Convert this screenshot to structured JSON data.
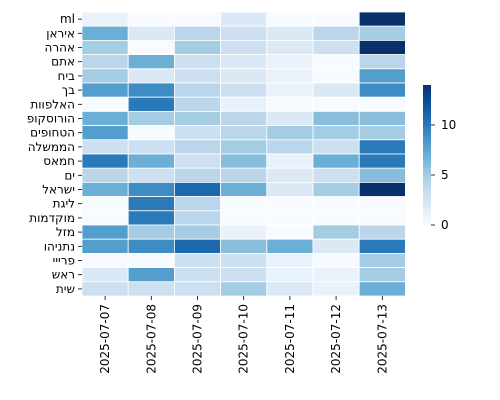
{
  "chart_data": {
    "type": "heatmap",
    "title": "",
    "xlabel": "",
    "ylabel": "",
    "colormap": "Blues",
    "colors": {
      "low": "#f7fbff",
      "high": "#08306b"
    },
    "vmin": 0,
    "vmax": 14,
    "colorbar_ticks": [
      "0",
      "5",
      "10"
    ],
    "colorbar_tick_values": [
      0,
      5,
      10
    ],
    "x_categories": [
      "2025-07-07",
      "2025-07-08",
      "2025-07-09",
      "2025-07-10",
      "2025-07-11",
      "2025-07-12",
      "2025-07-13"
    ],
    "y_categories": [
      "ml",
      "איראן",
      "אהרה",
      "אתם",
      "ביח",
      "בך",
      "האלפוות",
      "הורוסקופ",
      "הטחופים",
      "הממשלה",
      "חמאס",
      "ים",
      "ישראל",
      "ליגת",
      "מוקדמות",
      "מזל",
      "נתניהו",
      "פרייי",
      "ראש",
      "שית"
    ],
    "values": [
      [
        1,
        0,
        0,
        2,
        0,
        0,
        14
      ],
      [
        7,
        2,
        4,
        3,
        2,
        4,
        5
      ],
      [
        5,
        0,
        5,
        3,
        2,
        3,
        14
      ],
      [
        4,
        7,
        3,
        2,
        1,
        0,
        4
      ],
      [
        5,
        2,
        3,
        2,
        1,
        0,
        8
      ],
      [
        8,
        9,
        4,
        3,
        1,
        2,
        9
      ],
      [
        0,
        10,
        4,
        1,
        0,
        0,
        0
      ],
      [
        7,
        5,
        5,
        4,
        2,
        6,
        6
      ],
      [
        8,
        0,
        3,
        4,
        5,
        5,
        5
      ],
      [
        3,
        3,
        4,
        5,
        4,
        3,
        10
      ],
      [
        10,
        7,
        3,
        6,
        1,
        7,
        10
      ],
      [
        4,
        3,
        4,
        4,
        2,
        3,
        6
      ],
      [
        7,
        9,
        11,
        7,
        2,
        5,
        14
      ],
      [
        0,
        10,
        4,
        0,
        0,
        0,
        0
      ],
      [
        0,
        10,
        4,
        0,
        0,
        0,
        0
      ],
      [
        8,
        5,
        5,
        1,
        0,
        5,
        4
      ],
      [
        8,
        9,
        11,
        6,
        7,
        2,
        10
      ],
      [
        0,
        0,
        3,
        3,
        1,
        0,
        5
      ],
      [
        2,
        8,
        3,
        3,
        1,
        1,
        5
      ],
      [
        3,
        3,
        3,
        5,
        2,
        1,
        7
      ]
    ]
  }
}
